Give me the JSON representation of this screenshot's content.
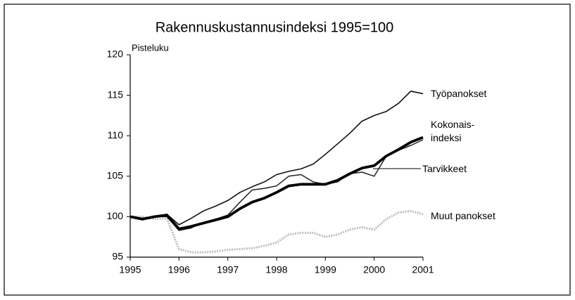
{
  "chart_data": {
    "type": "line",
    "title": "Rakennuskustannusindeksi 1995=100",
    "y_label": "Pisteluku",
    "x": [
      1995,
      1995.25,
      1995.5,
      1995.75,
      1996,
      1996.25,
      1996.5,
      1996.75,
      1997,
      1997.25,
      1997.5,
      1997.75,
      1998,
      1998.25,
      1998.5,
      1998.75,
      1999,
      1999.25,
      1999.5,
      1999.75,
      2000,
      2000.25,
      2000.5,
      2000.75,
      2001
    ],
    "series": [
      {
        "name": "Työpanokset",
        "color": "#111111",
        "values": [
          100,
          99.8,
          100,
          100.3,
          99,
          99.8,
          100.7,
          101.3,
          102,
          103,
          103.7,
          104.3,
          105.2,
          105.6,
          105.9,
          106.5,
          107.7,
          109,
          110.3,
          111.8,
          112.5,
          113,
          114,
          115.5,
          115.2
        ]
      },
      {
        "name": "Kokonais- indeksi",
        "color": "#000000",
        "values": [
          100,
          99.7,
          100,
          100.2,
          98.5,
          98.8,
          99.2,
          99.6,
          100,
          101,
          101.8,
          102.3,
          103,
          103.8,
          104,
          104,
          104,
          104.5,
          105.3,
          106,
          106.3,
          107.5,
          108.3,
          109.2,
          109.8
        ]
      },
      {
        "name": "Tarvikkeet",
        "color": "#222222",
        "values": [
          100,
          99.6,
          100,
          100,
          98.3,
          98.6,
          99.3,
          99.7,
          100.2,
          101.8,
          103.3,
          103.5,
          103.8,
          105,
          105.2,
          104.3,
          104,
          104.3,
          105.3,
          105.5,
          105,
          107.5,
          108.2,
          108.8,
          109.5
        ]
      },
      {
        "name": "Muut panokset",
        "color": "#bdbdbd",
        "values": [
          100,
          100,
          99.7,
          99.8,
          96,
          95.6,
          95.6,
          95.7,
          95.9,
          96,
          96.1,
          96.4,
          96.8,
          97.8,
          98,
          98,
          97.5,
          97.8,
          98.4,
          98.7,
          98.4,
          99.7,
          100.5,
          100.7,
          100.3
        ]
      }
    ],
    "xlim": [
      1995,
      2001
    ],
    "xticks": [
      1995,
      1996,
      1997,
      1998,
      1999,
      2000,
      2001
    ],
    "ylim": [
      95,
      120
    ],
    "yticks": [
      95,
      100,
      105,
      110,
      115,
      120
    ],
    "grid": false
  }
}
